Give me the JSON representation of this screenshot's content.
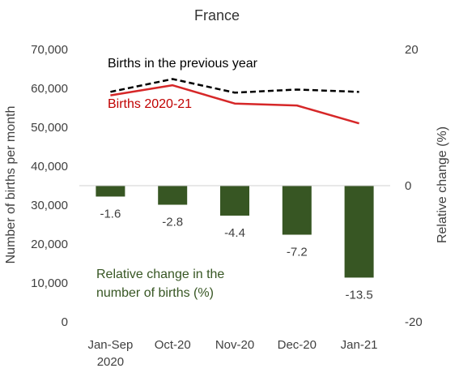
{
  "chart_data": {
    "type": "bar",
    "title": "France",
    "categories": [
      "Jan-Sep 2020",
      "Oct-20",
      "Nov-20",
      "Dec-20",
      "Jan-21"
    ],
    "category_lines": [
      [
        "Jan-Sep",
        "2020"
      ],
      [
        "Oct-20"
      ],
      [
        "Nov-20"
      ],
      [
        "Dec-20"
      ],
      [
        "Jan-21"
      ]
    ],
    "left_axis": {
      "label": "Number of births per month",
      "ylim": [
        0,
        70000
      ],
      "ticks": [
        0,
        10000,
        20000,
        30000,
        40000,
        50000,
        60000,
        70000
      ],
      "tick_labels": [
        "0",
        "10,000",
        "20,000",
        "30,000",
        "40,000",
        "50,000",
        "60,000",
        "70,000"
      ]
    },
    "right_axis": {
      "label": "Relative change (%)",
      "ylim": [
        -20,
        20
      ],
      "ticks": [
        -20,
        0,
        20
      ],
      "tick_labels": [
        "-20",
        "0",
        "20"
      ]
    },
    "series": [
      {
        "name": "Births in the previous year",
        "kind": "line",
        "style": "dashed",
        "axis": "left",
        "color": "#000000",
        "values": [
          59100,
          62400,
          58900,
          59700,
          59100
        ]
      },
      {
        "name": "Births 2020-21",
        "kind": "line",
        "style": "solid",
        "axis": "left",
        "color": "#d62728",
        "values": [
          58200,
          60800,
          56100,
          55600,
          51000
        ]
      },
      {
        "name": "Relative change in the number of births (%)",
        "name_lines": [
          "Relative change in the",
          "number of births (%)"
        ],
        "kind": "bar",
        "axis": "right",
        "color": "#375623",
        "values": [
          -1.6,
          -2.8,
          -4.4,
          -7.2,
          -13.5
        ],
        "data_labels": [
          "-1.6",
          "-2.8",
          "-4.4",
          "-7.2",
          "-13.5"
        ]
      }
    ],
    "grid": false,
    "legend": "inline annotations inside plot area"
  }
}
